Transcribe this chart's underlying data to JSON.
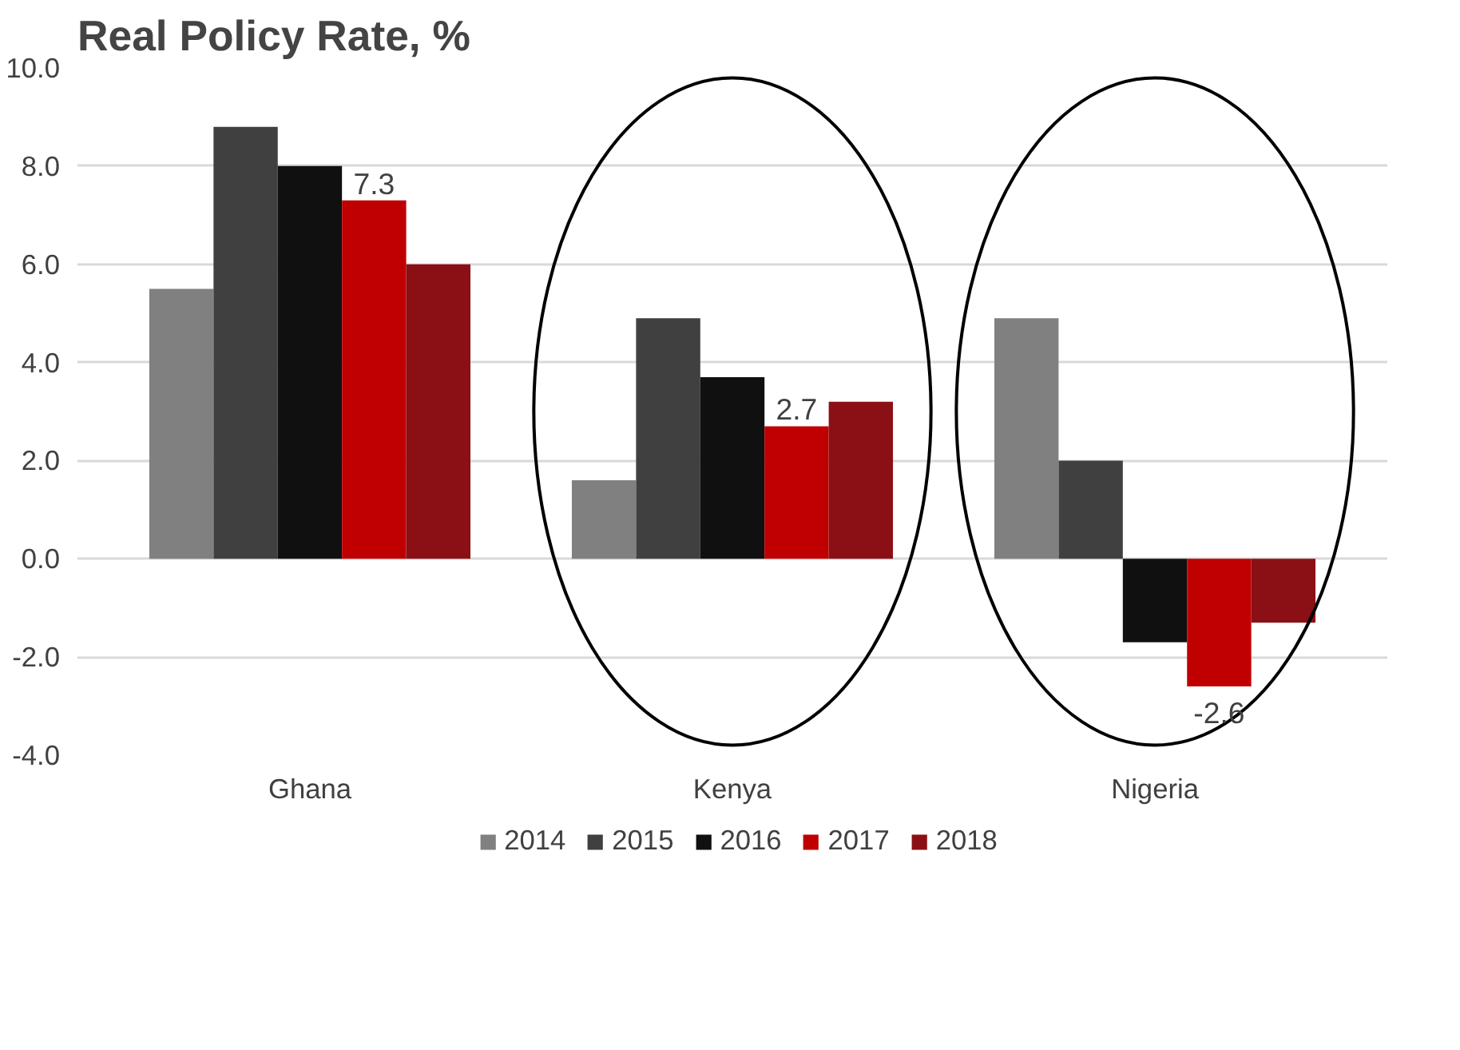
{
  "chart_data": {
    "type": "bar",
    "title": "Real Policy Rate, %",
    "categories": [
      "Ghana",
      "Kenya",
      "Nigeria"
    ],
    "series": [
      {
        "name": "2014",
        "color": "#808080",
        "values": [
          5.5,
          1.6,
          4.9
        ]
      },
      {
        "name": "2015",
        "color": "#404040",
        "values": [
          8.8,
          4.9,
          2.0
        ]
      },
      {
        "name": "2016",
        "color": "#101010",
        "values": [
          8.0,
          3.7,
          -1.7
        ]
      },
      {
        "name": "2017",
        "color": "#c00000",
        "values": [
          7.3,
          2.7,
          -2.6
        ],
        "value_labels": [
          "7.3",
          "2.7",
          "-2.6"
        ]
      },
      {
        "name": "2018",
        "color": "#8b1016",
        "values": [
          6.0,
          3.2,
          -1.3
        ]
      }
    ],
    "ylim": [
      -4,
      10
    ],
    "yticks": [
      {
        "value": -4,
        "label": "-4.0"
      },
      {
        "value": -2,
        "label": "-2.0"
      },
      {
        "value": 0,
        "label": "0.0"
      },
      {
        "value": 2,
        "label": "2.0"
      },
      {
        "value": 4,
        "label": "4.0"
      },
      {
        "value": 6,
        "label": "6.0"
      },
      {
        "value": 8,
        "label": "8.0"
      },
      {
        "value": 10,
        "label": "10.0"
      }
    ],
    "grid": "y",
    "legend": "bottom"
  }
}
